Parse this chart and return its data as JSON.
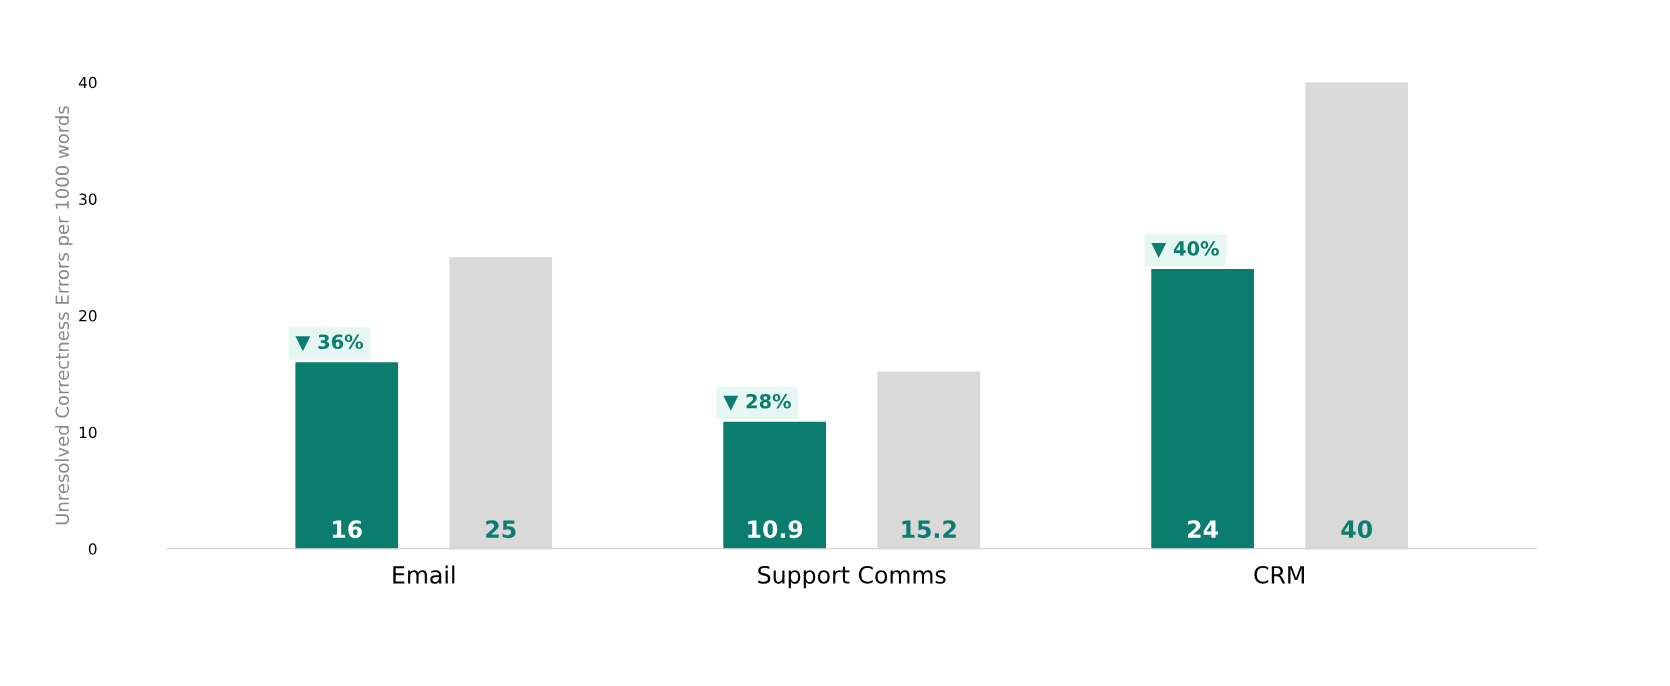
{
  "chart_data": {
    "type": "bar",
    "ylabel": "Unresolved Correctness Errors per 1000 words",
    "categories": [
      "Email",
      "Support Comms",
      "CRM"
    ],
    "series": [
      {
        "color": "#0a7d6e",
        "values": [
          16,
          10.9,
          24
        ]
      },
      {
        "color": "#d9d9d9",
        "values": [
          25,
          15.2,
          40
        ]
      }
    ],
    "data_labels": true,
    "ylim": [
      0,
      40
    ],
    "yticks": [
      0,
      10,
      20,
      30,
      40
    ],
    "grid": false,
    "legend": false,
    "annotations": [
      "▼ 36%",
      "▼ 28%",
      "▼ 40%"
    ]
  }
}
